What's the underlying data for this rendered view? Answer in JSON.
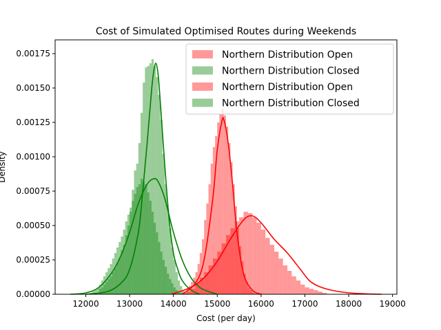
{
  "chart_data": {
    "type": "histogram",
    "title": "Cost of Simulated Optimised Routes during Weekends",
    "xlabel": "Cost (per day)",
    "ylabel": "Density",
    "xlim": [
      11300,
      19100
    ],
    "ylim": [
      0,
      0.00185
    ],
    "xticks": [
      12000,
      13000,
      14000,
      15000,
      16000,
      17000,
      18000,
      19000
    ],
    "yticks": [
      0,
      0.00025,
      0.0005,
      0.00075,
      0.001,
      0.00125,
      0.0015,
      0.00175
    ],
    "ytick_labels": [
      "0.00000",
      "0.00025",
      "0.00050",
      "0.00075",
      "0.00100",
      "0.00125",
      "0.00150",
      "0.00175"
    ],
    "legend_placement": "top-right",
    "legend": [
      {
        "label": "Northern Distribution Open",
        "color": "#ff0000"
      },
      {
        "label": "Northern Distribution Closed",
        "color": "#008000"
      },
      {
        "label": "Northern Distribution Open",
        "color": "#ff0000"
      },
      {
        "label": "Northern Distribution Closed",
        "color": "#008000"
      }
    ],
    "series": [
      {
        "name": "Northern Distribution Closed",
        "color": "#008000",
        "bins": {
          "start": 12300,
          "width": 50,
          "density": [
            4e-05,
            5e-05,
            7e-05,
            9e-05,
            0.00011,
            0.00013,
            0.00016,
            0.00019,
            0.00023,
            0.00026,
            0.00032,
            0.00036,
            0.00043,
            0.0005,
            0.0006,
            0.00076,
            0.0009,
            0.00095,
            0.0011,
            0.00132,
            0.00154,
            0.00165,
            0.00166,
            0.00168,
            0.00171,
            0.00166,
            0.00158,
            0.00145,
            0.00127,
            0.00102,
            0.0008,
            0.00062,
            0.00048,
            0.00034,
            0.00025,
            0.00016,
            0.0001,
            6e-05,
            3e-05,
            1e-05
          ]
        },
        "kde": {
          "x": [
            12000,
            12500,
            12800,
            13000,
            13200,
            13300,
            13400,
            13500,
            13550,
            13600,
            13650,
            13700,
            13800,
            13900,
            14000,
            14100,
            14200,
            14400,
            14600
          ],
          "y": [
            0,
            2e-05,
            8e-05,
            0.00018,
            0.00045,
            0.00075,
            0.0011,
            0.00148,
            0.00162,
            0.00168,
            0.0016,
            0.0014,
            0.00095,
            0.00055,
            0.0003,
            0.00018,
            0.0001,
            3e-05,
            0
          ]
        }
      },
      {
        "name": "Northern Distribution Closed",
        "color": "#008000",
        "bins": {
          "start": 12100,
          "width": 50,
          "density": [
            1e-05,
            2e-05,
            3e-05,
            5e-05,
            7e-05,
            0.0001,
            0.00013,
            0.00016,
            0.00019,
            0.00022,
            0.00026,
            0.0003,
            0.00034,
            0.00038,
            0.00042,
            0.00047,
            0.00053,
            0.00058,
            0.00063,
            0.00068,
            0.00073,
            0.00078,
            0.0008,
            0.00084,
            0.00082,
            0.0008,
            0.00074,
            0.00068,
            0.0006,
            0.00052,
            0.00045,
            0.00038,
            0.00031,
            0.00025,
            0.0002,
            0.00015,
            0.00011,
            8e-05,
            5e-05,
            3e-05,
            2e-05,
            1e-05
          ]
        },
        "kde": {
          "x": [
            11650,
            12000,
            12300,
            12600,
            12800,
            13000,
            13200,
            13400,
            13550,
            13650,
            13800,
            14000,
            14200,
            14400,
            14600,
            14800,
            15000
          ],
          "y": [
            0,
            1e-05,
            5e-05,
            0.00016,
            0.00028,
            0.00045,
            0.00066,
            0.0008,
            0.00084,
            0.00082,
            0.0007,
            0.00045,
            0.00025,
            0.00012,
            5e-05,
            2e-05,
            0
          ]
        }
      },
      {
        "name": "Northern Distribution Open",
        "color": "#ff0000",
        "bins": {
          "start": 14200,
          "width": 50,
          "density": [
            1e-05,
            2e-05,
            4e-05,
            6e-05,
            9e-05,
            0.00012,
            0.00016,
            0.00022,
            0.0003,
            0.0004,
            0.00054,
            0.00066,
            0.0008,
            0.00095,
            0.00107,
            0.00115,
            0.00125,
            0.00131,
            0.00135,
            0.0013,
            0.00122,
            0.0011,
            0.00096,
            0.0008,
            0.00064,
            0.00048,
            0.00035,
            0.00024,
            0.00015,
            9e-05,
            5e-05,
            3e-05,
            1e-05
          ]
        },
        "kde": {
          "x": [
            14200,
            14500,
            14700,
            14900,
            15000,
            15100,
            15150,
            15250,
            15350,
            15450,
            15600,
            15800,
            16000
          ],
          "y": [
            0,
            8e-05,
            0.00025,
            0.0007,
            0.00105,
            0.00125,
            0.00127,
            0.0011,
            0.0008,
            0.00045,
            0.00015,
            3e-05,
            0
          ]
        }
      },
      {
        "name": "Northern Distribution Open",
        "color": "#ff0000",
        "bins": {
          "start": 14300,
          "width": 100,
          "density": [
            2e-05,
            4e-05,
            8e-05,
            0.00012,
            0.00016,
            0.00021,
            0.00026,
            0.00031,
            0.00037,
            0.00043,
            0.00048,
            0.00053,
            0.00056,
            0.0006,
            0.00059,
            0.00056,
            0.00052,
            0.00047,
            0.00041,
            0.00036,
            0.00031,
            0.00026,
            0.00021,
            0.00017,
            0.00013,
            0.0001,
            7e-05,
            5e-05,
            4e-05,
            3e-05,
            2e-05,
            1e-05
          ]
        },
        "kde": {
          "x": [
            13950,
            14400,
            14700,
            15000,
            15300,
            15600,
            15800,
            16000,
            16300,
            16600,
            16900,
            17100,
            17300,
            17600,
            18000,
            18400,
            18750
          ],
          "y": [
            0,
            5e-05,
            0.00012,
            0.00024,
            0.0004,
            0.00054,
            0.00057,
            0.00052,
            0.0004,
            0.0003,
            0.00018,
            0.0001,
            6e-05,
            3e-05,
            1e-05,
            3e-06,
            0
          ]
        }
      }
    ]
  }
}
